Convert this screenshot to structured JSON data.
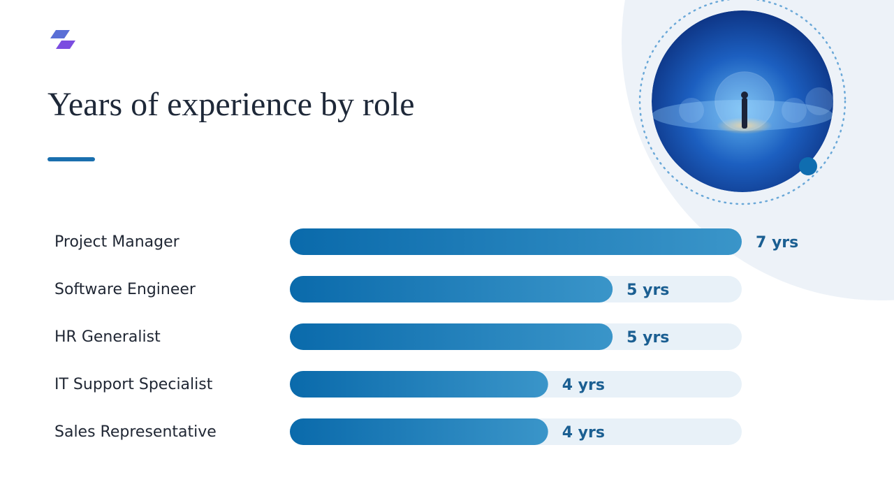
{
  "chart_data": {
    "type": "bar",
    "orientation": "horizontal",
    "title": "Years of experience by role",
    "categories": [
      "Project Manager",
      "Software Engineer",
      "HR Generalist",
      "IT Support Specialist",
      "Sales Representative"
    ],
    "values": [
      7,
      5,
      5,
      4,
      4
    ],
    "value_labels": [
      "7 yrs",
      "5 yrs",
      "5 yrs",
      "4 yrs",
      "4 yrs"
    ],
    "xlim": [
      0,
      7
    ],
    "color": "#0b72b5"
  }
}
